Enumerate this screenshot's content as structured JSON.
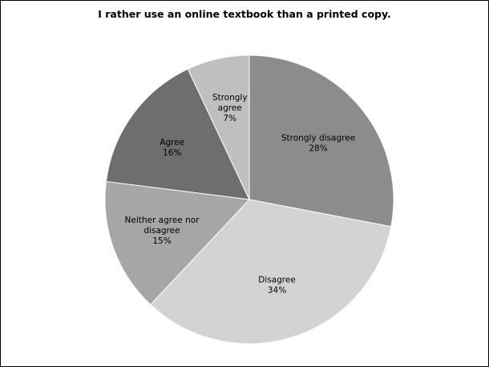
{
  "chart_data": {
    "type": "pie",
    "title": "I rather use an online textbook than a printed copy.",
    "slices": [
      {
        "label": "Strongly disagree",
        "label_lines": [
          "Strongly disagree",
          "28%"
        ],
        "value": 28,
        "color": "#8c8c8c"
      },
      {
        "label": "Disagree",
        "label_lines": [
          "Disagree",
          "34%"
        ],
        "value": 34,
        "color": "#d3d3d3"
      },
      {
        "label": "Neither agree nor disagree",
        "label_lines": [
          "Neither agree nor",
          "disagree",
          "15%"
        ],
        "value": 15,
        "color": "#a6a6a6"
      },
      {
        "label": "Agree",
        "label_lines": [
          "Agree",
          "16%"
        ],
        "value": 16,
        "color": "#6e6e6e"
      },
      {
        "label": "Strongly agree",
        "label_lines": [
          "Strongly",
          "agree",
          "7%"
        ],
        "value": 7,
        "color": "#bfbfbf"
      }
    ],
    "legend": "none",
    "start_angle": "12 o'clock",
    "direction": "clockwise"
  }
}
